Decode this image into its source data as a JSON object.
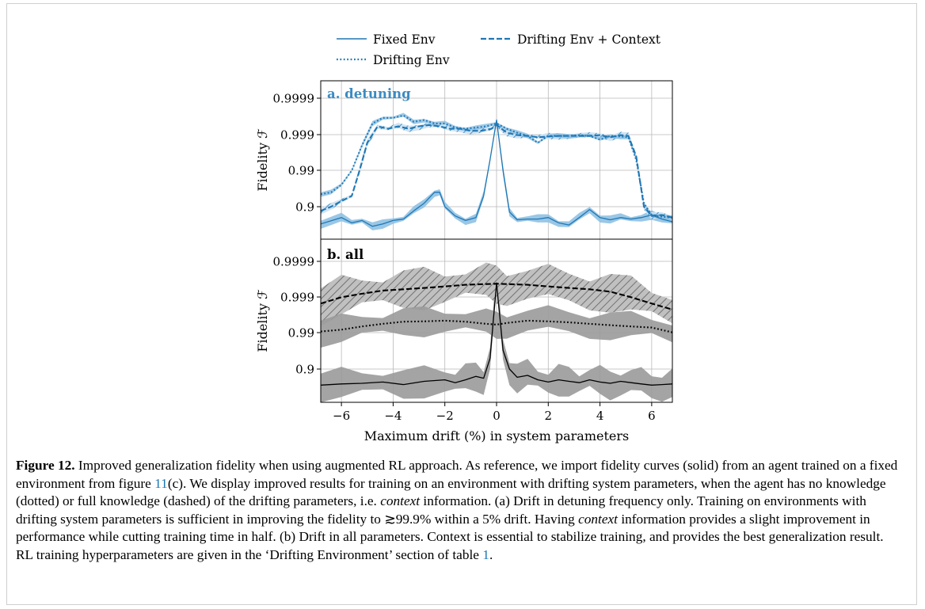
{
  "legend": {
    "entries": [
      {
        "label": "Fixed Env",
        "style": "solid"
      },
      {
        "label": "Drifting Env + Context",
        "style": "dashed"
      },
      {
        "label": "Drifting Env",
        "style": "dotted"
      }
    ]
  },
  "panels": [
    {
      "title": "a. detuning",
      "ylabel": "Fidelity ℱ",
      "title_color": "#3b8bc2"
    },
    {
      "title": "b. all",
      "ylabel": "Fidelity ℱ",
      "title_color": "#000000"
    }
  ],
  "xlabel": "Maximum drift (%) in system parameters",
  "x_ticks": [
    "−6",
    "−4",
    "−2",
    "0",
    "2",
    "4",
    "6"
  ],
  "y_ticks": [
    "0.9999",
    "0.999",
    "0.99",
    "0.9"
  ],
  "colors": {
    "blue": "#1f77b4",
    "blue_band": "#8fc1e3",
    "black": "#000000",
    "gray_band": "#9a9a9a"
  },
  "chart_data": [
    {
      "type": "line",
      "title": "a. detuning",
      "xlabel": "",
      "ylabel": "Fidelity ℱ",
      "yscale": "log(1-F)",
      "xlim": [
        -6.8,
        6.8
      ],
      "ylim": [
        0.6,
        0.99996
      ],
      "grid": true,
      "legend": "top",
      "series": [
        {
          "name": "Fixed Env",
          "style": "solid",
          "color": "#1f77b4",
          "x": [
            -6.8,
            -6.0,
            -5.6,
            -5.2,
            -4.8,
            -4.4,
            -4.0,
            -3.6,
            -3.2,
            -2.8,
            -2.4,
            -2.2,
            -2.0,
            -1.6,
            -1.2,
            -0.8,
            -0.5,
            -0.25,
            0,
            0.25,
            0.5,
            0.8,
            1.2,
            1.6,
            2.0,
            2.4,
            2.8,
            3.2,
            3.6,
            4.0,
            4.4,
            4.8,
            5.2,
            5.6,
            6.0,
            6.4,
            6.8
          ],
          "y": [
            0.7,
            0.8,
            0.72,
            0.76,
            0.65,
            0.7,
            0.76,
            0.78,
            0.87,
            0.92,
            0.96,
            0.96,
            0.9,
            0.82,
            0.76,
            0.8,
            0.95,
            0.995,
            0.9996,
            0.99,
            0.86,
            0.77,
            0.78,
            0.78,
            0.8,
            0.72,
            0.68,
            0.8,
            0.88,
            0.8,
            0.77,
            0.8,
            0.78,
            0.8,
            0.83,
            0.78,
            0.74
          ]
        },
        {
          "name": "Drifting Env + Context",
          "style": "dashed",
          "color": "#1f77b4",
          "x": [
            -6.8,
            -6.4,
            -6.0,
            -5.6,
            -5.3,
            -5.0,
            -4.6,
            -4.2,
            -3.8,
            -3.4,
            -3.0,
            -2.6,
            -2.2,
            -1.8,
            -1.4,
            -1.0,
            -0.6,
            -0.2,
            0,
            0.4,
            0.8,
            1.2,
            1.6,
            2.0,
            2.4,
            2.8,
            3.2,
            3.6,
            4.0,
            4.4,
            4.8,
            5.1,
            5.4,
            5.7,
            6.0,
            6.4,
            6.8
          ],
          "y": [
            0.87,
            0.9,
            0.93,
            0.95,
            0.99,
            0.9983,
            0.9994,
            0.9993,
            0.9994,
            0.9993,
            0.9994,
            0.99945,
            0.9994,
            0.9993,
            0.9993,
            0.9992,
            0.9992,
            0.9993,
            0.99945,
            0.9991,
            0.99895,
            0.9989,
            0.9988,
            0.99885,
            0.9989,
            0.9989,
            0.9989,
            0.9989,
            0.99895,
            0.9988,
            0.99895,
            0.9989,
            0.996,
            0.9,
            0.82,
            0.83,
            0.8
          ]
        },
        {
          "name": "Drifting Env",
          "style": "dotted",
          "color": "#1f77b4",
          "x": [
            -6.8,
            -6.4,
            -6.0,
            -5.6,
            -5.2,
            -4.8,
            -4.4,
            -4.0,
            -3.6,
            -3.2,
            -2.8,
            -2.4,
            -2.0,
            -1.6,
            -1.2,
            -0.8,
            -0.4,
            0,
            0.4,
            0.8,
            1.2,
            1.6,
            2.0,
            2.4,
            2.8,
            3.2,
            3.6,
            4.0,
            4.4,
            4.8,
            5.1,
            5.4,
            5.7,
            6.0,
            6.4,
            6.8
          ],
          "y": [
            0.955,
            0.96,
            0.975,
            0.99,
            0.998,
            0.9995,
            0.99965,
            0.99965,
            0.9997,
            0.99955,
            0.9996,
            0.9995,
            0.9995,
            0.99935,
            0.9993,
            0.99935,
            0.9994,
            0.9995,
            0.9993,
            0.9991,
            0.9989,
            0.9983,
            0.9989,
            0.9989,
            0.9989,
            0.99895,
            0.9989,
            0.9986,
            0.9989,
            0.99885,
            0.9988,
            0.995,
            0.92,
            0.83,
            0.81,
            0.8
          ]
        }
      ]
    },
    {
      "type": "line",
      "title": "b. all",
      "xlabel": "Maximum drift (%) in system parameters",
      "ylabel": "Fidelity ℱ",
      "yscale": "log(1-F)",
      "xlim": [
        -6.8,
        6.8
      ],
      "ylim": [
        0.6,
        0.99996
      ],
      "grid": true,
      "series": [
        {
          "name": "Fixed Env",
          "style": "solid",
          "color": "#000000",
          "x": [
            -6.8,
            -6.0,
            -5.2,
            -4.4,
            -3.6,
            -2.8,
            -2.0,
            -1.6,
            -1.2,
            -0.8,
            -0.5,
            -0.25,
            0,
            0.25,
            0.5,
            0.8,
            1.2,
            1.6,
            2.0,
            2.4,
            2.8,
            3.2,
            3.6,
            4.0,
            4.4,
            4.8,
            5.2,
            5.6,
            6.0,
            6.4,
            6.8
          ],
          "y": [
            0.72,
            0.74,
            0.75,
            0.77,
            0.73,
            0.78,
            0.8,
            0.76,
            0.8,
            0.84,
            0.82,
            0.95,
            0.9996,
            0.97,
            0.9,
            0.83,
            0.85,
            0.8,
            0.77,
            0.8,
            0.78,
            0.76,
            0.8,
            0.77,
            0.75,
            0.78,
            0.76,
            0.74,
            0.72,
            0.73,
            0.74
          ]
        },
        {
          "name": "Drifting Env + Context",
          "style": "dashed",
          "color": "#000000",
          "x": [
            -6.8,
            -6.0,
            -5.2,
            -4.4,
            -3.6,
            -2.8,
            -2.0,
            -1.2,
            -0.4,
            0,
            0.4,
            1.2,
            2.0,
            2.8,
            3.6,
            4.4,
            5.2,
            6.0,
            6.8
          ],
          "y": [
            0.9985,
            0.999,
            0.9992,
            0.99935,
            0.9994,
            0.99945,
            0.9995,
            0.99955,
            0.99957,
            0.99958,
            0.99957,
            0.99955,
            0.9995,
            0.99945,
            0.9994,
            0.9993,
            0.999,
            0.9985,
            0.9978
          ]
        },
        {
          "name": "Drifting Env",
          "style": "dotted",
          "color": "#000000",
          "x": [
            -6.8,
            -6.0,
            -5.2,
            -4.4,
            -3.6,
            -2.8,
            -2.0,
            -1.2,
            -0.4,
            0,
            0.4,
            1.2,
            2.0,
            2.8,
            3.6,
            4.4,
            5.2,
            6.0,
            6.8
          ],
          "y": [
            0.991,
            0.992,
            0.9935,
            0.9945,
            0.9952,
            0.9953,
            0.9955,
            0.9952,
            0.9945,
            0.9942,
            0.9948,
            0.9955,
            0.9953,
            0.995,
            0.9945,
            0.994,
            0.9935,
            0.993,
            0.9905
          ]
        }
      ]
    }
  ],
  "caption": {
    "label": "Figure 12.",
    "t1": " Improved generalization fidelity when using augmented RL approach. As reference, we import fidelity curves (solid) from an agent trained on a fixed environment from figure ",
    "ref1": "11",
    "t2": "(c). We display improved results for training on an environment with drifting system parameters, when the agent has no knowledge (dotted) or full knowledge (dashed) of the drifting parameters, i.e. ",
    "em1": "context",
    "t3": " information. (a) Drift in detuning frequency only. Training on environments with drifting system parameters is sufficient in improving the fidelity to ≳99.9% within a 5% drift. Having ",
    "em2": "context",
    "t4": " information provides a slight improvement in performance while cutting training time in half. (b) Drift in all parameters. Context is essential to stabilize training, and provides the best generalization result. RL training hyperparameters are given in the ‘Drifting Environment’ section of table ",
    "ref2": "1",
    "t5": "."
  }
}
